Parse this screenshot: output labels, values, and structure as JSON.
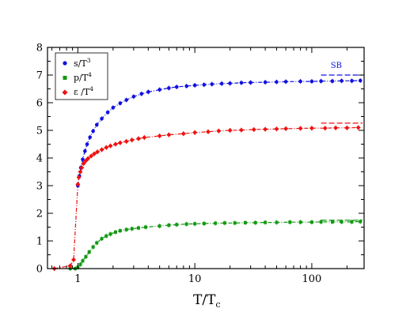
{
  "chart_data": {
    "type": "scatter",
    "x_scale": "log",
    "xlim": [
      0.55,
      280
    ],
    "ylim": [
      0,
      8
    ],
    "x_ticks": [
      {
        "value": 1,
        "label": "1"
      },
      {
        "value": 10,
        "label": "10"
      },
      {
        "value": 100,
        "label": "100"
      }
    ],
    "y_ticks": [
      {
        "value": 0,
        "label": "0"
      },
      {
        "value": 1,
        "label": "1"
      },
      {
        "value": 2,
        "label": "2"
      },
      {
        "value": 3,
        "label": "3"
      },
      {
        "value": 4,
        "label": "4"
      },
      {
        "value": 5,
        "label": "5"
      },
      {
        "value": 6,
        "label": "6"
      },
      {
        "value": 7,
        "label": "7"
      },
      {
        "value": 8,
        "label": "8"
      }
    ],
    "xlabel": {
      "main": "T/T",
      "sub": "c"
    },
    "ylabel": "",
    "legend_position": "top-left",
    "grid": false,
    "series": [
      {
        "key": "s",
        "label_main": "s/T",
        "label_sup": "3",
        "color": "#1111e0",
        "marker": "circle",
        "x": [
          1.0,
          1.03,
          1.06,
          1.1,
          1.15,
          1.2,
          1.27,
          1.35,
          1.45,
          1.6,
          1.8,
          2.0,
          2.3,
          2.6,
          3.0,
          3.5,
          4.0,
          5.0,
          6.0,
          7.0,
          8.5,
          10,
          12,
          14,
          17,
          20,
          25,
          30,
          40,
          50,
          60,
          80,
          100,
          120,
          150,
          180,
          220,
          260
        ],
        "y": [
          3.0,
          3.35,
          3.65,
          3.95,
          4.25,
          4.5,
          4.75,
          4.97,
          5.2,
          5.42,
          5.65,
          5.82,
          5.98,
          6.1,
          6.22,
          6.32,
          6.39,
          6.47,
          6.53,
          6.57,
          6.6,
          6.63,
          6.65,
          6.67,
          6.69,
          6.7,
          6.72,
          6.73,
          6.74,
          6.75,
          6.76,
          6.77,
          6.77,
          6.78,
          6.78,
          6.79,
          6.79,
          6.8
        ]
      },
      {
        "key": "p",
        "label_main": "p/T",
        "label_sup": "4",
        "color": "#119911",
        "marker": "square",
        "x": [
          0.86,
          0.95,
          1.0,
          1.05,
          1.1,
          1.17,
          1.25,
          1.35,
          1.45,
          1.6,
          1.75,
          1.9,
          2.1,
          2.3,
          2.6,
          2.9,
          3.3,
          3.8,
          5.0,
          6.0,
          7.0,
          8.5,
          10,
          12,
          15,
          18,
          22,
          27,
          33,
          40,
          50,
          65,
          80,
          100,
          120,
          150,
          180,
          220,
          260
        ],
        "y": [
          0.0,
          0.0,
          0.05,
          0.15,
          0.28,
          0.43,
          0.6,
          0.78,
          0.93,
          1.08,
          1.18,
          1.25,
          1.32,
          1.37,
          1.41,
          1.44,
          1.47,
          1.5,
          1.54,
          1.57,
          1.59,
          1.61,
          1.62,
          1.63,
          1.64,
          1.65,
          1.65,
          1.66,
          1.66,
          1.67,
          1.67,
          1.68,
          1.68,
          1.68,
          1.69,
          1.69,
          1.69,
          1.69,
          1.7
        ]
      },
      {
        "key": "e",
        "label_main": "ε /T",
        "label_sup": "4",
        "color": "#ee1111",
        "marker": "diamond",
        "x": [
          0.63,
          0.86,
          0.92,
          1.0,
          1.02,
          1.05,
          1.08,
          1.12,
          1.17,
          1.22,
          1.3,
          1.38,
          1.47,
          1.6,
          1.75,
          1.9,
          2.1,
          2.3,
          2.6,
          2.9,
          3.3,
          3.7,
          5.0,
          6.0,
          8.0,
          10,
          13,
          16,
          20,
          25,
          32,
          40,
          50,
          60,
          80,
          100,
          130,
          160,
          200,
          250
        ],
        "y": [
          0.0,
          0.1,
          0.32,
          3.05,
          3.3,
          3.5,
          3.65,
          3.8,
          3.9,
          3.98,
          4.07,
          4.15,
          4.22,
          4.3,
          4.38,
          4.44,
          4.5,
          4.55,
          4.6,
          4.65,
          4.7,
          4.74,
          4.8,
          4.84,
          4.88,
          4.92,
          4.95,
          4.98,
          5.0,
          5.01,
          5.03,
          5.04,
          5.05,
          5.06,
          5.07,
          5.08,
          5.08,
          5.09,
          5.09,
          5.1
        ]
      }
    ],
    "sb_limits": [
      {
        "key": "s",
        "value": 7.0,
        "color": "#1111e0"
      },
      {
        "key": "e",
        "value": 5.26,
        "color": "#ee1111"
      },
      {
        "key": "p",
        "value": 1.75,
        "color": "#119911"
      }
    ],
    "annotations": [
      {
        "text": "SB",
        "color": "#1111e0"
      }
    ]
  }
}
